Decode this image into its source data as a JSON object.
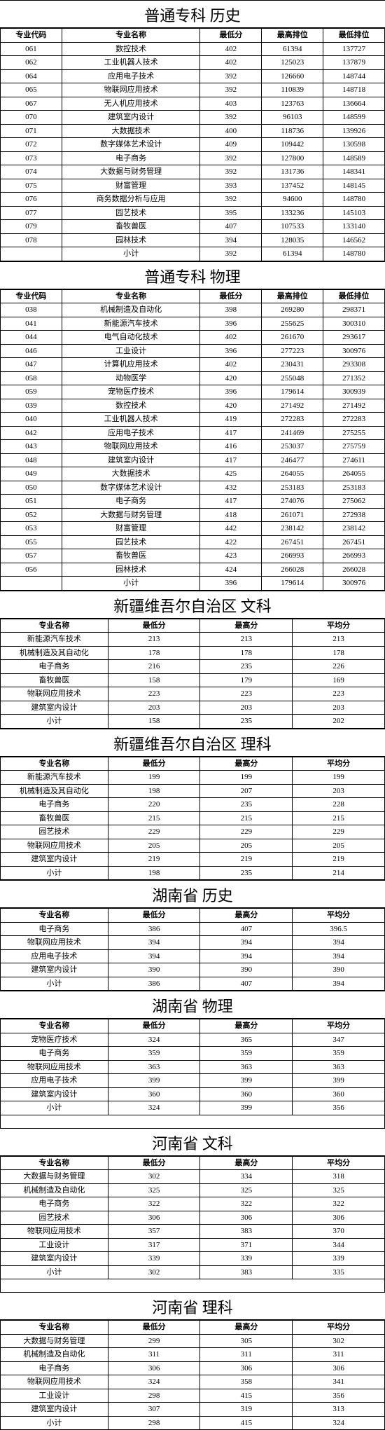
{
  "tables": [
    {
      "title": "普通专科  历史",
      "col_widths": [
        "16%",
        "36%",
        "16%",
        "16%",
        "16%"
      ],
      "headers": [
        "专业代码",
        "专业名称",
        "最低分",
        "最高排位",
        "最低排位"
      ],
      "rows": [
        [
          "061",
          "数控技术",
          "402",
          "61394",
          "137727"
        ],
        [
          "062",
          "工业机器人技术",
          "402",
          "125023",
          "137879"
        ],
        [
          "064",
          "应用电子技术",
          "392",
          "126660",
          "148744"
        ],
        [
          "065",
          "物联网应用技术",
          "392",
          "110839",
          "148718"
        ],
        [
          "067",
          "无人机应用技术",
          "403",
          "123763",
          "136664"
        ],
        [
          "070",
          "建筑室内设计",
          "392",
          "96103",
          "148599"
        ],
        [
          "071",
          "大数据技术",
          "400",
          "118736",
          "139926"
        ],
        [
          "072",
          "数字媒体艺术设计",
          "409",
          "109442",
          "130598"
        ],
        [
          "073",
          "电子商务",
          "392",
          "127800",
          "148589"
        ],
        [
          "074",
          "大数据与财务管理",
          "392",
          "131736",
          "148341"
        ],
        [
          "075",
          "财富管理",
          "393",
          "137452",
          "148145"
        ],
        [
          "076",
          "商务数据分析与应用",
          "392",
          "94600",
          "148780"
        ],
        [
          "077",
          "园艺技术",
          "395",
          "133236",
          "145103"
        ],
        [
          "079",
          "畜牧兽医",
          "407",
          "107533",
          "133140"
        ],
        [
          "078",
          "园林技术",
          "394",
          "128035",
          "146562"
        ],
        [
          "",
          "小计",
          "392",
          "61394",
          "148780"
        ]
      ]
    },
    {
      "title": "普通专科  物理",
      "col_widths": [
        "16%",
        "36%",
        "16%",
        "16%",
        "16%"
      ],
      "headers": [
        "专业代码",
        "专业名称",
        "最低分",
        "最高排位",
        "最低排位"
      ],
      "rows": [
        [
          "038",
          "机械制造及自动化",
          "398",
          "269280",
          "298371"
        ],
        [
          "041",
          "新能源汽车技术",
          "396",
          "255625",
          "300310"
        ],
        [
          "044",
          "电气自动化技术",
          "402",
          "261670",
          "293617"
        ],
        [
          "046",
          "工业设计",
          "396",
          "277223",
          "300976"
        ],
        [
          "047",
          "计算机应用技术",
          "402",
          "230431",
          "293308"
        ],
        [
          "058",
          "动物医学",
          "420",
          "255048",
          "271352"
        ],
        [
          "059",
          "宠物医疗技术",
          "396",
          "179614",
          "300939"
        ],
        [
          "039",
          "数控技术",
          "420",
          "271492",
          "271492"
        ],
        [
          "040",
          "工业机器人技术",
          "419",
          "272283",
          "272283"
        ],
        [
          "042",
          "应用电子技术",
          "417",
          "241469",
          "275255"
        ],
        [
          "043",
          "物联网应用技术",
          "416",
          "253037",
          "275759"
        ],
        [
          "048",
          "建筑室内设计",
          "417",
          "246477",
          "274611"
        ],
        [
          "049",
          "大数据技术",
          "425",
          "264055",
          "264055"
        ],
        [
          "050",
          "数字媒体艺术设计",
          "432",
          "253183",
          "253183"
        ],
        [
          "051",
          "电子商务",
          "417",
          "274076",
          "275062"
        ],
        [
          "052",
          "大数据与财务管理",
          "418",
          "261071",
          "272938"
        ],
        [
          "053",
          "财富管理",
          "442",
          "238142",
          "238142"
        ],
        [
          "055",
          "园艺技术",
          "422",
          "267451",
          "267451"
        ],
        [
          "057",
          "畜牧兽医",
          "423",
          "266993",
          "266993"
        ],
        [
          "056",
          "园林技术",
          "424",
          "266028",
          "266028"
        ],
        [
          "",
          "小计",
          "396",
          "179614",
          "300976"
        ]
      ]
    },
    {
      "title": "新疆维吾尔自治区  文科",
      "col_widths": [
        "28%",
        "24%",
        "24%",
        "24%"
      ],
      "headers": [
        "专业名称",
        "最低分",
        "最高分",
        "平均分"
      ],
      "rows": [
        [
          "新能源汽车技术",
          "213",
          "213",
          "213"
        ],
        [
          "机械制造及其自动化",
          "178",
          "178",
          "178"
        ],
        [
          "电子商务",
          "216",
          "235",
          "226"
        ],
        [
          "畜牧兽医",
          "158",
          "179",
          "169"
        ],
        [
          "物联网应用技术",
          "223",
          "223",
          "223"
        ],
        [
          "建筑室内设计",
          "203",
          "203",
          "203"
        ],
        [
          "小计",
          "158",
          "235",
          "202"
        ]
      ]
    },
    {
      "title": "新疆维吾尔自治区  理科",
      "col_widths": [
        "28%",
        "24%",
        "24%",
        "24%"
      ],
      "headers": [
        "专业名称",
        "最低分",
        "最高分",
        "平均分"
      ],
      "rows": [
        [
          "新能源汽车技术",
          "199",
          "199",
          "199"
        ],
        [
          "机械制造及其自动化",
          "198",
          "207",
          "203"
        ],
        [
          "电子商务",
          "220",
          "235",
          "228"
        ],
        [
          "畜牧兽医",
          "215",
          "215",
          "215"
        ],
        [
          "园艺技术",
          "229",
          "229",
          "229"
        ],
        [
          "物联网应用技术",
          "205",
          "205",
          "205"
        ],
        [
          "建筑室内设计",
          "219",
          "219",
          "219"
        ],
        [
          "小计",
          "198",
          "235",
          "214"
        ]
      ]
    },
    {
      "title": "湖南省  历史",
      "col_widths": [
        "28%",
        "24%",
        "24%",
        "24%"
      ],
      "headers": [
        "专业名称",
        "最低分",
        "最高分",
        "平均分"
      ],
      "rows": [
        [
          "电子商务",
          "386",
          "407",
          "396.5"
        ],
        [
          "物联网应用技术",
          "394",
          "394",
          "394"
        ],
        [
          "应用电子技术",
          "394",
          "394",
          "394"
        ],
        [
          "建筑室内设计",
          "390",
          "390",
          "390"
        ],
        [
          "小计",
          "386",
          "407",
          "394"
        ]
      ]
    },
    {
      "title": "湖南省  物理",
      "col_widths": [
        "28%",
        "24%",
        "24%",
        "24%"
      ],
      "headers": [
        "专业名称",
        "最低分",
        "最高分",
        "平均分"
      ],
      "rows": [
        [
          "宠物医疗技术",
          "324",
          "365",
          "347"
        ],
        [
          "电子商务",
          "359",
          "359",
          "359"
        ],
        [
          "物联网应用技术",
          "363",
          "363",
          "363"
        ],
        [
          "应用电子技术",
          "399",
          "399",
          "399"
        ],
        [
          "建筑室内设计",
          "360",
          "360",
          "360"
        ],
        [
          "小计",
          "324",
          "399",
          "356"
        ]
      ]
    },
    {
      "title": "河南省  文科",
      "gap_before": true,
      "col_widths": [
        "28%",
        "24%",
        "24%",
        "24%"
      ],
      "headers": [
        "专业名称",
        "最低分",
        "最高分",
        "平均分"
      ],
      "rows": [
        [
          "大数据与财务管理",
          "302",
          "334",
          "318"
        ],
        [
          "机械制造及自动化",
          "325",
          "325",
          "325"
        ],
        [
          "电子商务",
          "322",
          "322",
          "322"
        ],
        [
          "园艺技术",
          "306",
          "306",
          "306"
        ],
        [
          "物联网应用技术",
          "357",
          "383",
          "370"
        ],
        [
          "工业设计",
          "317",
          "371",
          "344"
        ],
        [
          "建筑室内设计",
          "339",
          "339",
          "339"
        ],
        [
          "小计",
          "302",
          "383",
          "335"
        ]
      ]
    },
    {
      "title": "河南省  理科",
      "gap_before": true,
      "col_widths": [
        "28%",
        "24%",
        "24%",
        "24%"
      ],
      "headers": [
        "专业名称",
        "最低分",
        "最高分",
        "平均分"
      ],
      "rows": [
        [
          "大数据与财务管理",
          "299",
          "305",
          "302"
        ],
        [
          "机械制造及自动化",
          "311",
          "311",
          "311"
        ],
        [
          "电子商务",
          "306",
          "306",
          "306"
        ],
        [
          "物联网应用技术",
          "324",
          "358",
          "341"
        ],
        [
          "工业设计",
          "298",
          "415",
          "356"
        ],
        [
          "建筑室内设计",
          "307",
          "319",
          "313"
        ],
        [
          "小计",
          "298",
          "415",
          "324"
        ]
      ]
    }
  ]
}
